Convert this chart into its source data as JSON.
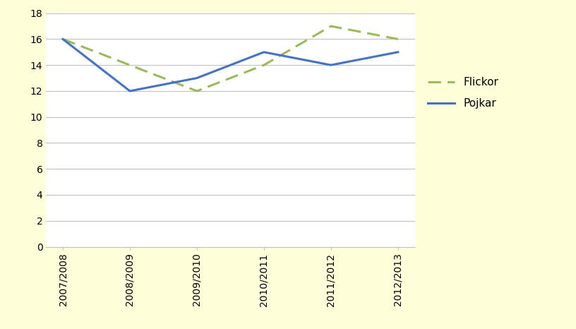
{
  "categories": [
    "2007/2008",
    "2008/2009",
    "2009/2010",
    "2010/2011",
    "2011/2012",
    "2012/2013"
  ],
  "flickor": [
    16,
    14,
    12,
    14,
    17,
    16
  ],
  "pojkar": [
    16,
    12,
    13,
    15,
    14,
    15
  ],
  "flickor_color": "#9BBB59",
  "pojkar_color": "#4472C4",
  "figure_bg_color": "#FFFFD9",
  "axes_bg_color": "#FFFFFF",
  "grid_color": "#C0C0C0",
  "ylim": [
    0,
    18
  ],
  "yticks": [
    0,
    2,
    4,
    6,
    8,
    10,
    12,
    14,
    16,
    18
  ],
  "legend_flickor": "Flickor",
  "legend_pojkar": "Pojkar",
  "flickor_linewidth": 2.2,
  "pojkar_linewidth": 2.2,
  "tick_fontsize": 10,
  "legend_fontsize": 11
}
